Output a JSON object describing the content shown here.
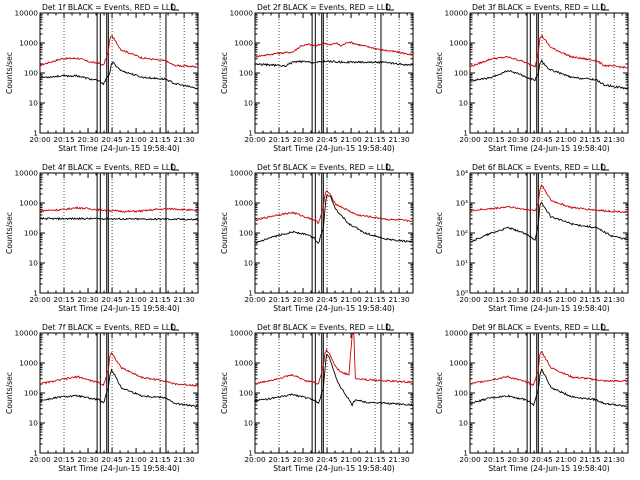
{
  "chart_data": {
    "type": "line",
    "ylabel": "Counts/sec",
    "xlabel": "Start Time (24-Jun-15 19:58:40)",
    "x_ticks": [
      "20:00",
      "20:15",
      "20:30",
      "20:45",
      "21:00",
      "21:15",
      "21:30"
    ],
    "x_tick_minutes_after_start": [
      1.33,
      16.33,
      31.33,
      46.33,
      61.33,
      76.33,
      91.33
    ],
    "x_range_minutes_after_start": [
      1.33,
      100
    ],
    "grid": "vertical dotted at 20:15, 20:45, 21:15, 21:30",
    "vertical_markers_minutes_after_start": [
      37,
      39,
      43,
      44,
      80
    ],
    "legend_glyph": "small black bracket after title",
    "series_names": [
      "BLACK = Events",
      "RED = LLD"
    ],
    "series_colors": {
      "events": "#000000",
      "lld": "#cc0000"
    },
    "panels": [
      {
        "title": "Det 1f BLACK = Events, RED = LLD",
        "y_ticks": [
          "1",
          "10",
          "100",
          "1000",
          "10000"
        ],
        "ylim": [
          1,
          10000
        ],
        "events": [
          [
            1,
            70
          ],
          [
            15,
            80
          ],
          [
            25,
            80
          ],
          [
            33,
            62
          ],
          [
            38,
            55
          ],
          [
            41,
            44
          ],
          [
            44,
            80
          ],
          [
            45,
            105
          ],
          [
            46,
            200
          ],
          [
            47,
            220
          ],
          [
            52,
            120
          ],
          [
            65,
            72
          ],
          [
            80,
            62
          ],
          [
            85,
            45
          ],
          [
            100,
            30
          ]
        ],
        "lld": [
          [
            1,
            180
          ],
          [
            15,
            300
          ],
          [
            25,
            310
          ],
          [
            33,
            230
          ],
          [
            38,
            210
          ],
          [
            41,
            180
          ],
          [
            44,
            500
          ],
          [
            45,
            1400
          ],
          [
            46,
            1800
          ],
          [
            47,
            1500
          ],
          [
            52,
            600
          ],
          [
            65,
            320
          ],
          [
            80,
            250
          ],
          [
            85,
            180
          ],
          [
            100,
            160
          ]
        ]
      },
      {
        "title": "Det 2f BLACK = Events, RED = LLD",
        "y_ticks": [
          "1",
          "10",
          "100",
          "1000",
          "10000"
        ],
        "ylim": [
          1,
          10000
        ],
        "events": [
          [
            1,
            200
          ],
          [
            15,
            180
          ],
          [
            20,
            170
          ],
          [
            25,
            230
          ],
          [
            30,
            240
          ],
          [
            35,
            230
          ],
          [
            40,
            220
          ],
          [
            45,
            250
          ],
          [
            50,
            240
          ],
          [
            55,
            230
          ],
          [
            65,
            230
          ],
          [
            80,
            230
          ],
          [
            90,
            200
          ],
          [
            100,
            180
          ]
        ],
        "lld": [
          [
            1,
            350
          ],
          [
            15,
            450
          ],
          [
            25,
            500
          ],
          [
            30,
            800
          ],
          [
            35,
            900
          ],
          [
            40,
            800
          ],
          [
            42,
            900
          ],
          [
            45,
            1000
          ],
          [
            48,
            850
          ],
          [
            52,
            1000
          ],
          [
            55,
            800
          ],
          [
            60,
            1100
          ],
          [
            65,
            900
          ],
          [
            80,
            600
          ],
          [
            90,
            500
          ],
          [
            100,
            400
          ]
        ]
      },
      {
        "title": "Det 3f BLACK = Events, RED = LLD",
        "y_ticks": [
          "1",
          "10",
          "100",
          "1000",
          "10000"
        ],
        "ylim": [
          1,
          10000
        ],
        "events": [
          [
            1,
            55
          ],
          [
            15,
            70
          ],
          [
            25,
            120
          ],
          [
            33,
            90
          ],
          [
            38,
            65
          ],
          [
            42,
            60
          ],
          [
            44,
            100
          ],
          [
            45,
            200
          ],
          [
            46,
            250
          ],
          [
            50,
            140
          ],
          [
            65,
            70
          ],
          [
            80,
            60
          ],
          [
            85,
            40
          ],
          [
            100,
            30
          ]
        ],
        "lld": [
          [
            1,
            160
          ],
          [
            15,
            300
          ],
          [
            25,
            340
          ],
          [
            33,
            260
          ],
          [
            38,
            200
          ],
          [
            42,
            170
          ],
          [
            44,
            500
          ],
          [
            45,
            1400
          ],
          [
            46,
            1800
          ],
          [
            48,
            1300
          ],
          [
            52,
            700
          ],
          [
            65,
            340
          ],
          [
            80,
            260
          ],
          [
            85,
            180
          ],
          [
            100,
            150
          ]
        ]
      },
      {
        "title": "Det 4f BLACK = Events, RED = LLD",
        "y_ticks": [
          "1",
          "10",
          "100",
          "1000",
          "10000"
        ],
        "ylim": [
          1,
          10000
        ],
        "events": [
          [
            1,
            300
          ],
          [
            20,
            300
          ],
          [
            40,
            300
          ],
          [
            60,
            290
          ],
          [
            80,
            290
          ],
          [
            100,
            280
          ]
        ],
        "lld": [
          [
            1,
            550
          ],
          [
            15,
            600
          ],
          [
            25,
            700
          ],
          [
            35,
            620
          ],
          [
            45,
            560
          ],
          [
            55,
            520
          ],
          [
            65,
            540
          ],
          [
            75,
            620
          ],
          [
            85,
            640
          ],
          [
            100,
            550
          ]
        ]
      },
      {
        "title": "Det 5f BLACK = Events, RED = LLD",
        "y_ticks": [
          "1",
          "10",
          "100",
          "1000",
          "10000"
        ],
        "ylim": [
          1,
          10000
        ],
        "events": [
          [
            1,
            45
          ],
          [
            15,
            80
          ],
          [
            25,
            110
          ],
          [
            33,
            90
          ],
          [
            38,
            70
          ],
          [
            41,
            45
          ],
          [
            44,
            150
          ],
          [
            45,
            600
          ],
          [
            46,
            1800
          ],
          [
            48,
            1800
          ],
          [
            52,
            600
          ],
          [
            60,
            200
          ],
          [
            70,
            100
          ],
          [
            85,
            60
          ],
          [
            100,
            50
          ]
        ],
        "lld": [
          [
            1,
            260
          ],
          [
            15,
            400
          ],
          [
            25,
            480
          ],
          [
            33,
            340
          ],
          [
            38,
            280
          ],
          [
            41,
            220
          ],
          [
            44,
            700
          ],
          [
            45,
            1800
          ],
          [
            46,
            2600
          ],
          [
            48,
            2000
          ],
          [
            52,
            900
          ],
          [
            65,
            400
          ],
          [
            85,
            280
          ],
          [
            100,
            250
          ]
        ]
      },
      {
        "title": "Det 6f BLACK = Events, RED = LLD",
        "y_ticks": [
          "10⁰",
          "10¹",
          "10²",
          "10³",
          "10⁴"
        ],
        "ylim": [
          1,
          10000
        ],
        "events": [
          [
            1,
            50
          ],
          [
            15,
            100
          ],
          [
            25,
            150
          ],
          [
            33,
            110
          ],
          [
            38,
            80
          ],
          [
            42,
            60
          ],
          [
            44,
            200
          ],
          [
            45,
            800
          ],
          [
            46,
            1000
          ],
          [
            48,
            700
          ],
          [
            52,
            350
          ],
          [
            65,
            200
          ],
          [
            80,
            150
          ],
          [
            90,
            80
          ],
          [
            100,
            60
          ]
        ],
        "lld": [
          [
            1,
            550
          ],
          [
            15,
            650
          ],
          [
            25,
            750
          ],
          [
            33,
            650
          ],
          [
            38,
            600
          ],
          [
            42,
            550
          ],
          [
            44,
            1000
          ],
          [
            45,
            2800
          ],
          [
            46,
            4000
          ],
          [
            48,
            2800
          ],
          [
            52,
            1200
          ],
          [
            65,
            700
          ],
          [
            85,
            550
          ],
          [
            100,
            500
          ]
        ]
      },
      {
        "title": "Det 7f BLACK = Events, RED = LLD",
        "y_ticks": [
          "1",
          "10",
          "100",
          "1000",
          "10000"
        ],
        "ylim": [
          1,
          10000
        ],
        "events": [
          [
            1,
            55
          ],
          [
            15,
            75
          ],
          [
            25,
            80
          ],
          [
            33,
            65
          ],
          [
            38,
            60
          ],
          [
            41,
            45
          ],
          [
            44,
            150
          ],
          [
            45,
            400
          ],
          [
            46,
            600
          ],
          [
            48,
            400
          ],
          [
            52,
            150
          ],
          [
            65,
            80
          ],
          [
            80,
            70
          ],
          [
            85,
            45
          ],
          [
            100,
            35
          ]
        ],
        "lld": [
          [
            1,
            200
          ],
          [
            15,
            280
          ],
          [
            25,
            350
          ],
          [
            33,
            260
          ],
          [
            38,
            220
          ],
          [
            41,
            180
          ],
          [
            44,
            600
          ],
          [
            45,
            1800
          ],
          [
            46,
            2200
          ],
          [
            48,
            1500
          ],
          [
            52,
            700
          ],
          [
            65,
            330
          ],
          [
            80,
            250
          ],
          [
            85,
            200
          ],
          [
            100,
            180
          ]
        ]
      },
      {
        "title": "Det 8f BLACK = Events, RED = LLD",
        "y_ticks": [
          "1",
          "10",
          "100",
          "1000",
          "10000"
        ],
        "ylim": [
          1,
          10000
        ],
        "events": [
          [
            1,
            55
          ],
          [
            15,
            70
          ],
          [
            25,
            90
          ],
          [
            33,
            70
          ],
          [
            38,
            60
          ],
          [
            41,
            45
          ],
          [
            44,
            150
          ],
          [
            45,
            600
          ],
          [
            46,
            2000
          ],
          [
            48,
            1500
          ],
          [
            52,
            300
          ],
          [
            55,
            150
          ],
          [
            60,
            60
          ],
          [
            62,
            40
          ],
          [
            64,
            60
          ],
          [
            70,
            50
          ],
          [
            85,
            45
          ],
          [
            100,
            40
          ]
        ],
        "lld": [
          [
            1,
            200
          ],
          [
            15,
            300
          ],
          [
            25,
            400
          ],
          [
            33,
            260
          ],
          [
            38,
            230
          ],
          [
            41,
            200
          ],
          [
            44,
            800
          ],
          [
            45,
            2000
          ],
          [
            46,
            2800
          ],
          [
            48,
            2000
          ],
          [
            52,
            700
          ],
          [
            55,
            500
          ],
          [
            60,
            400
          ],
          [
            62,
            9000
          ],
          [
            63,
            9500
          ],
          [
            64,
            300
          ],
          [
            70,
            280
          ],
          [
            85,
            250
          ],
          [
            100,
            230
          ]
        ]
      },
      {
        "title": "Det 9f BLACK = Events, RED = LLD",
        "y_ticks": [
          "1",
          "10",
          "100",
          "1000",
          "10000"
        ],
        "ylim": [
          1,
          10000
        ],
        "events": [
          [
            1,
            45
          ],
          [
            15,
            70
          ],
          [
            25,
            80
          ],
          [
            33,
            65
          ],
          [
            38,
            55
          ],
          [
            41,
            40
          ],
          [
            44,
            120
          ],
          [
            45,
            400
          ],
          [
            46,
            600
          ],
          [
            48,
            400
          ],
          [
            52,
            150
          ],
          [
            65,
            75
          ],
          [
            80,
            60
          ],
          [
            85,
            45
          ],
          [
            100,
            35
          ]
        ],
        "lld": [
          [
            1,
            200
          ],
          [
            15,
            280
          ],
          [
            25,
            350
          ],
          [
            33,
            260
          ],
          [
            38,
            220
          ],
          [
            41,
            180
          ],
          [
            44,
            600
          ],
          [
            45,
            1800
          ],
          [
            46,
            2400
          ],
          [
            48,
            1600
          ],
          [
            52,
            700
          ],
          [
            65,
            340
          ],
          [
            80,
            280
          ],
          [
            85,
            250
          ],
          [
            100,
            250
          ]
        ]
      }
    ]
  }
}
